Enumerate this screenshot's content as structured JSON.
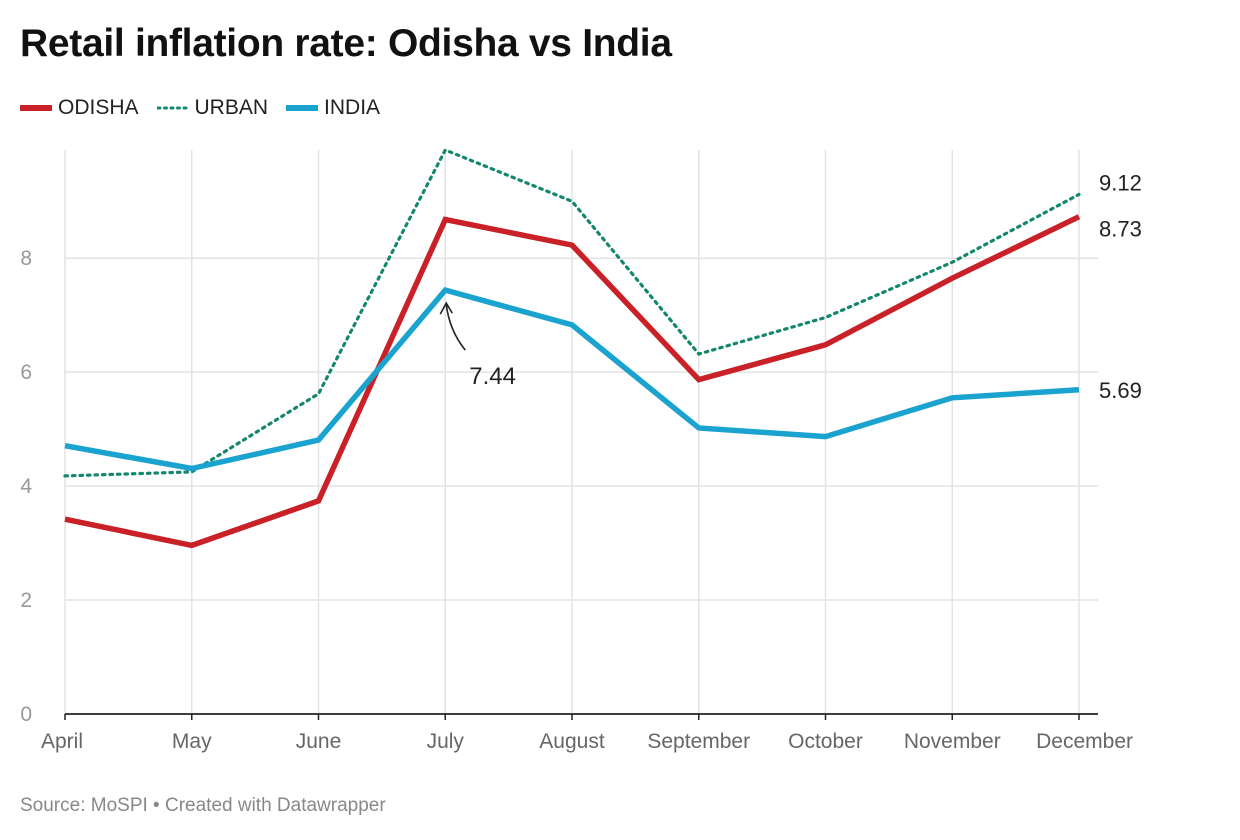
{
  "title": "Retail inflation rate: Odisha vs India",
  "source": "Source: MoSPI • Created with Datawrapper",
  "colors": {
    "odisha": "#c92127",
    "urban": "#14876f",
    "india": "#1ba3cf",
    "grid": "#e3e3e3",
    "axis": "#222222",
    "tick": "#999999"
  },
  "chart_data": {
    "type": "line",
    "title": "Retail inflation rate: Odisha vs India",
    "xlabel": "",
    "ylabel": "",
    "ylim": [
      0,
      9.9
    ],
    "yticks": [
      0,
      2,
      4,
      6,
      8
    ],
    "grid": true,
    "legend_position": "top-left",
    "categories": [
      "April",
      "May",
      "June",
      "July",
      "August",
      "September",
      "October",
      "November",
      "December"
    ],
    "series": [
      {
        "name": "ODISHA",
        "style": "solid",
        "color": "#c92127",
        "values": [
          3.42,
          2.96,
          3.74,
          8.68,
          8.23,
          5.87,
          6.48,
          7.65,
          8.73
        ]
      },
      {
        "name": "URBAN",
        "style": "dotted",
        "color": "#14876f",
        "values": [
          4.18,
          4.25,
          5.62,
          9.9,
          9.0,
          6.32,
          6.96,
          7.93,
          9.12
        ]
      },
      {
        "name": "INDIA",
        "style": "solid",
        "color": "#1ba3cf",
        "values": [
          4.71,
          4.31,
          4.81,
          7.44,
          6.83,
          5.02,
          4.87,
          5.55,
          5.69
        ]
      }
    ],
    "annotations": [
      {
        "text": "7.44",
        "series": "INDIA",
        "category": "July"
      },
      {
        "text": "9.12",
        "series": "URBAN",
        "category": "December"
      },
      {
        "text": "8.73",
        "series": "ODISHA",
        "category": "December"
      },
      {
        "text": "5.69",
        "series": "INDIA",
        "category": "December"
      }
    ]
  }
}
